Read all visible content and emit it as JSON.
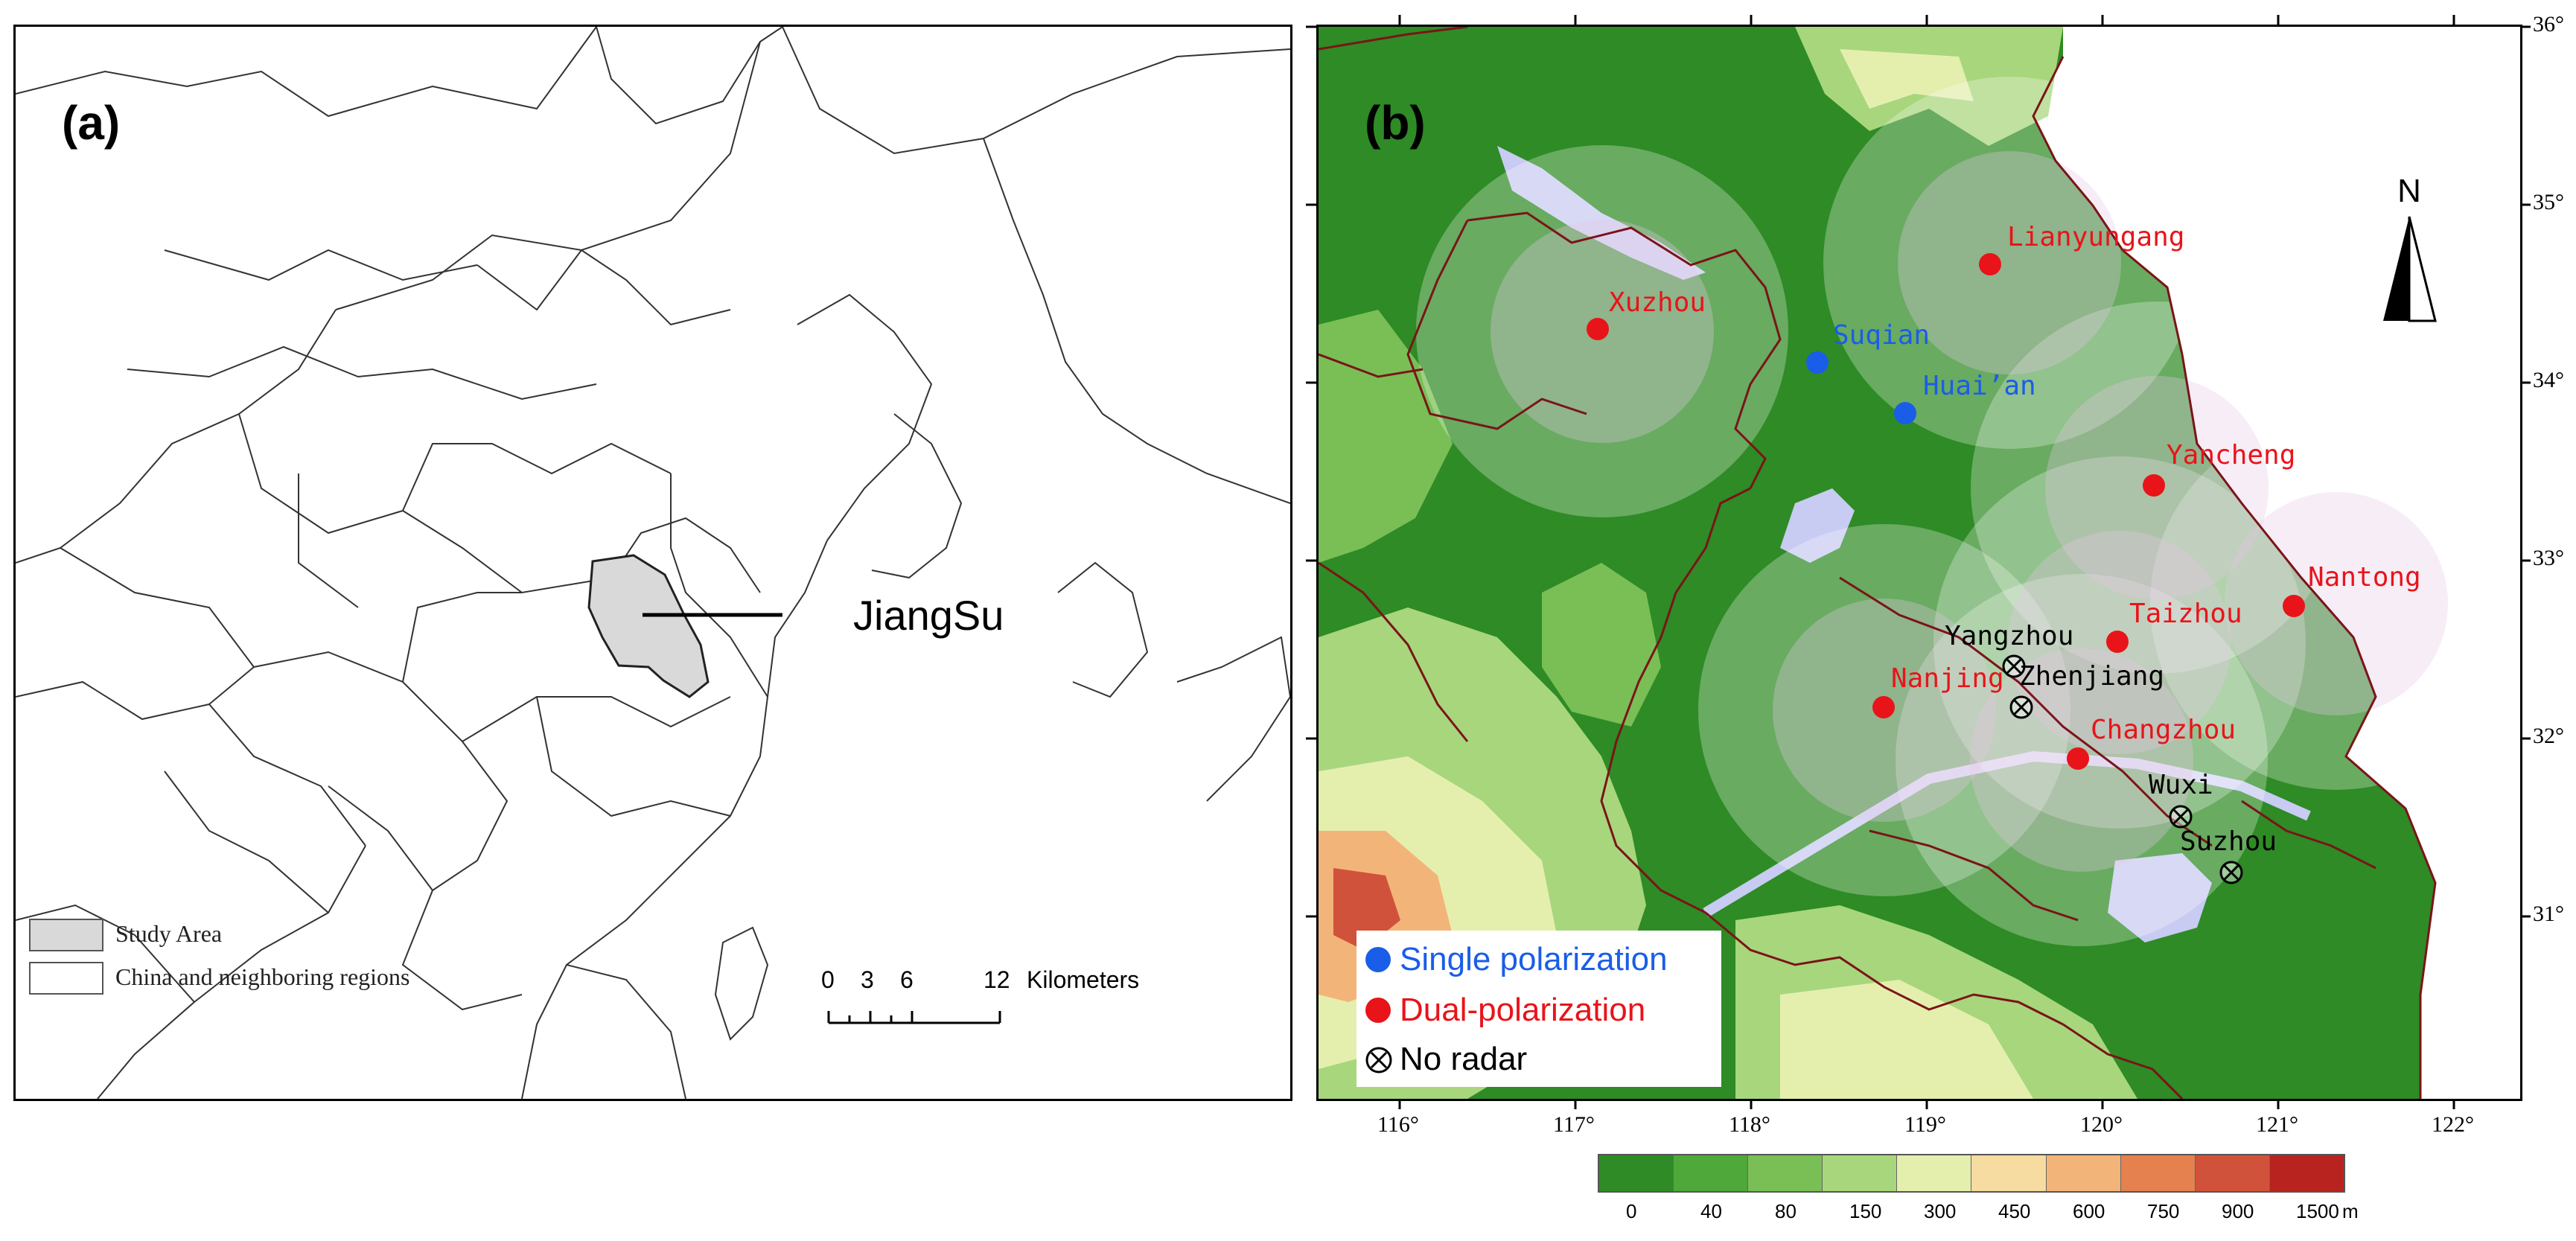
{
  "panel_a": {
    "label": "(a)",
    "region_label": "JiangSu",
    "legend": [
      {
        "label": "Study Area",
        "color": "#d9d9d9"
      },
      {
        "label": "China and neighboring regions",
        "color": "#ffffff"
      }
    ],
    "scale_bar": {
      "ticks": [
        "0",
        "3",
        "6",
        "12"
      ],
      "unit": "Kilometers"
    }
  },
  "panel_b": {
    "label": "(b)",
    "north_label": "N",
    "stations": [
      {
        "name": "Xuzhou",
        "type": "dual"
      },
      {
        "name": "Lianyungang",
        "type": "dual"
      },
      {
        "name": "Suqian",
        "type": "single"
      },
      {
        "name": "Huai’an",
        "type": "single"
      },
      {
        "name": "Yancheng",
        "type": "dual"
      },
      {
        "name": "Nantong",
        "type": "dual"
      },
      {
        "name": "Taizhou",
        "type": "dual"
      },
      {
        "name": "Nanjing",
        "type": "dual"
      },
      {
        "name": "Changzhou",
        "type": "dual"
      },
      {
        "name": "Yangzhou",
        "type": "none"
      },
      {
        "name": "Zhenjiang",
        "type": "none"
      },
      {
        "name": "Wuxi",
        "type": "none"
      },
      {
        "name": "Suzhou",
        "type": "none"
      }
    ],
    "legend": [
      {
        "label": "Single polarization",
        "color": "#1a5de8",
        "icon": "blue-dot-icon"
      },
      {
        "label": "Dual-polarization",
        "color": "#e8141a",
        "icon": "red-dot-icon"
      },
      {
        "label": "No radar",
        "color": "#000000",
        "icon": "circled-x-icon"
      }
    ],
    "lon_ticks": [
      "116°",
      "117°",
      "118°",
      "119°",
      "120°",
      "121°",
      "122°"
    ],
    "lat_ticks": [
      "36°",
      "35°",
      "34°",
      "33°",
      "32°",
      "31°"
    ],
    "colorbar": {
      "unit": "m",
      "labels": [
        "0",
        "40",
        "80",
        "150",
        "300",
        "450",
        "600",
        "750",
        "900",
        "1500"
      ],
      "colors": [
        "#2e8b25",
        "#4fa83a",
        "#79bf55",
        "#a8d67c",
        "#e4efae",
        "#f6dca0",
        "#f3b47a",
        "#e5814f",
        "#d1523a",
        "#b8231f"
      ]
    }
  }
}
